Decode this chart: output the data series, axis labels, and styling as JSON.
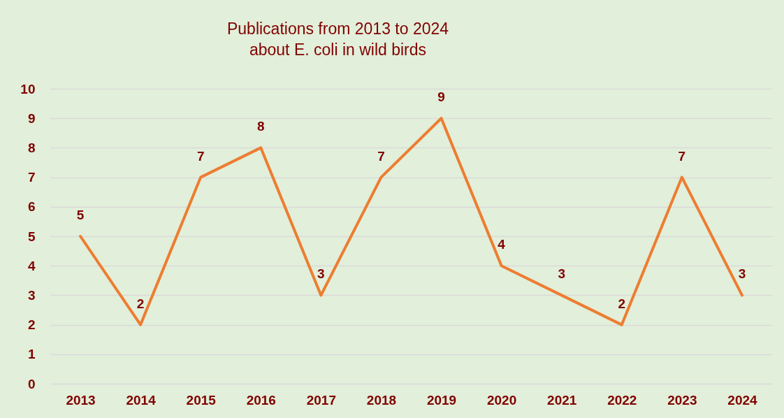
{
  "chart_data": {
    "type": "line",
    "title": [
      "Publications from 2013 to 2024",
      "about E. coli in wild birds"
    ],
    "categories": [
      "2013",
      "2014",
      "2015",
      "2016",
      "2017",
      "2018",
      "2019",
      "2020",
      "2021",
      "2022",
      "2023",
      "2024"
    ],
    "series": [
      {
        "color": "#ed7d31",
        "values": [
          5,
          2,
          7,
          8,
          3,
          7,
          9,
          4,
          3,
          2,
          7,
          3
        ]
      }
    ],
    "ylim": [
      0,
      10
    ],
    "yticks": [
      0,
      1,
      2,
      3,
      4,
      5,
      6,
      7,
      8,
      9,
      10
    ],
    "grid": "y",
    "data_labels": true,
    "marker": "none",
    "line_style": "solid"
  }
}
